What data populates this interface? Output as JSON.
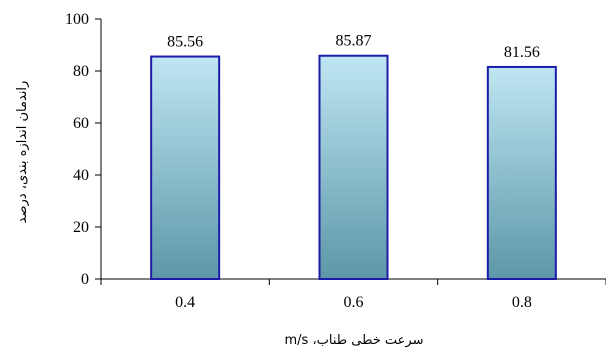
{
  "chart_data": {
    "type": "bar",
    "categories": [
      "0.4",
      "0.6",
      "0.8"
    ],
    "values": [
      85.56,
      85.87,
      81.56
    ],
    "data_labels": [
      "85.56",
      "85.87",
      "81.56"
    ],
    "xlabel": "سرعت خطی طناب، m/s",
    "ylabel": "راندمان اندازه بندی، درصد",
    "ylim": [
      0,
      100
    ],
    "yticks": [
      0,
      20,
      40,
      60,
      80,
      100
    ],
    "grid": false,
    "legend": "none",
    "colors": {
      "bar_top": "#bfe6f2",
      "bar_bottom": "#5c97a8",
      "bar_outline": "#1c1ca8",
      "axis": "#000000"
    }
  }
}
